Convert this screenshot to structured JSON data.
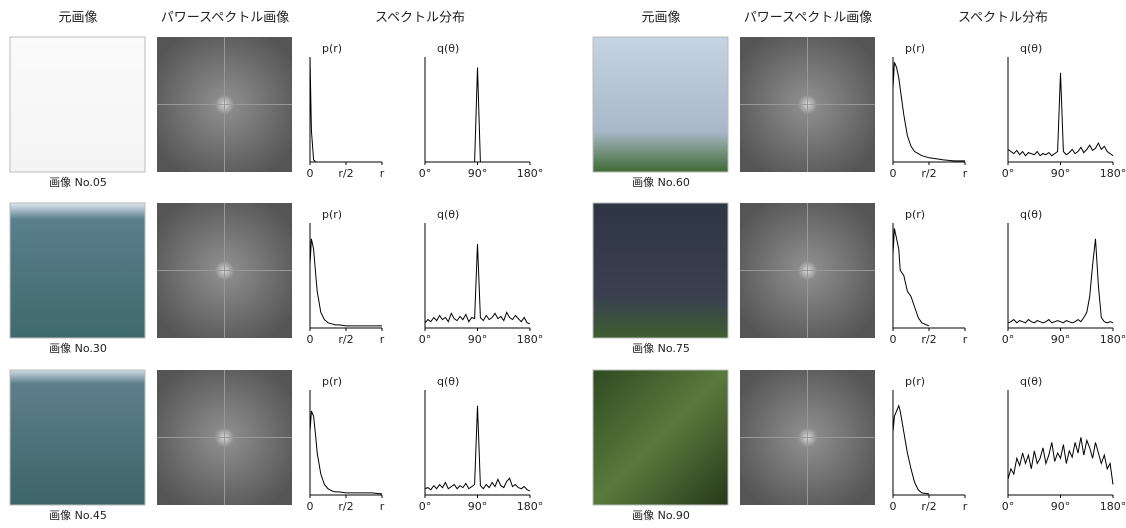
{
  "headers": [
    "元画像",
    "パワースペクトル画像",
    "スペクトル分布"
  ],
  "p_axis": {
    "label": "p(r)",
    "xlim": [
      0,
      1
    ],
    "ylim": [
      0,
      1
    ],
    "xticks": [
      0,
      {
        "value": 0.5,
        "label": "r/2"
      },
      {
        "value": 1,
        "label": "r"
      }
    ],
    "x": [
      0,
      0.02,
      0.05,
      0.08,
      0.1,
      0.15,
      0.2,
      0.25,
      0.3,
      0.35,
      0.4,
      0.5,
      0.6,
      0.7,
      0.85,
      1
    ]
  },
  "q_axis": {
    "label": "q(θ)",
    "xlim": [
      0,
      180
    ],
    "ylim": [
      0,
      1
    ],
    "xticks": [
      {
        "value": 0,
        "label": "0°"
      },
      {
        "value": 90,
        "label": "90°"
      },
      {
        "value": 180,
        "label": "180°"
      }
    ],
    "x": [
      0,
      5,
      10,
      15,
      20,
      25,
      30,
      35,
      40,
      45,
      50,
      55,
      60,
      65,
      70,
      75,
      80,
      85,
      90,
      95,
      100,
      105,
      110,
      115,
      120,
      125,
      130,
      135,
      140,
      145,
      150,
      155,
      160,
      165,
      170,
      175,
      180
    ]
  },
  "panels": [
    {
      "label": "画像 No.05",
      "p": [
        1,
        0.3,
        0.02,
        0,
        0,
        0,
        0,
        0,
        0,
        0,
        0,
        0,
        0,
        0,
        0,
        0
      ],
      "q": [
        0,
        0,
        0,
        0,
        0,
        0,
        0,
        0,
        0,
        0,
        0,
        0,
        0,
        0,
        0,
        0,
        0,
        0,
        0.9,
        0,
        0,
        0,
        0,
        0,
        0,
        0,
        0,
        0,
        0,
        0,
        0,
        0,
        0,
        0,
        0,
        0,
        0
      ]
    },
    {
      "label": "画像 No.30",
      "p": [
        0.6,
        0.85,
        0.75,
        0.5,
        0.35,
        0.15,
        0.08,
        0.05,
        0.04,
        0.03,
        0.03,
        0.02,
        0.02,
        0.02,
        0.02,
        0.02
      ],
      "q": [
        0.05,
        0.08,
        0.06,
        0.1,
        0.07,
        0.12,
        0.08,
        0.1,
        0.06,
        0.14,
        0.09,
        0.07,
        0.11,
        0.08,
        0.13,
        0.06,
        0.1,
        0.09,
        0.8,
        0.1,
        0.07,
        0.12,
        0.08,
        0.1,
        0.14,
        0.09,
        0.11,
        0.07,
        0.15,
        0.1,
        0.08,
        0.12,
        0.09,
        0.06,
        0.1,
        0.05,
        0.04
      ]
    },
    {
      "label": "画像 No.45",
      "p": [
        0.6,
        0.8,
        0.75,
        0.55,
        0.4,
        0.2,
        0.1,
        0.06,
        0.04,
        0.03,
        0.03,
        0.02,
        0.02,
        0.02,
        0.02,
        0.01
      ],
      "q": [
        0.06,
        0.07,
        0.05,
        0.09,
        0.06,
        0.1,
        0.07,
        0.12,
        0.06,
        0.08,
        0.1,
        0.06,
        0.09,
        0.07,
        0.11,
        0.06,
        0.08,
        0.1,
        0.85,
        0.09,
        0.06,
        0.1,
        0.07,
        0.12,
        0.08,
        0.15,
        0.09,
        0.07,
        0.13,
        0.16,
        0.08,
        0.1,
        0.07,
        0.06,
        0.08,
        0.05,
        0.04
      ]
    },
    {
      "label": "画像 No.60",
      "p": [
        0.7,
        0.95,
        0.9,
        0.8,
        0.7,
        0.45,
        0.25,
        0.15,
        0.1,
        0.08,
        0.06,
        0.04,
        0.03,
        0.02,
        0.01,
        0.01
      ],
      "q": [
        0.12,
        0.1,
        0.08,
        0.11,
        0.07,
        0.1,
        0.06,
        0.09,
        0.08,
        0.07,
        0.1,
        0.06,
        0.08,
        0.07,
        0.09,
        0.06,
        0.08,
        0.1,
        0.85,
        0.1,
        0.07,
        0.09,
        0.12,
        0.08,
        0.1,
        0.14,
        0.09,
        0.12,
        0.16,
        0.11,
        0.13,
        0.18,
        0.12,
        0.15,
        0.1,
        0.08,
        0.06
      ]
    },
    {
      "label": "画像 No.75",
      "p": [
        0.7,
        0.95,
        0.85,
        0.75,
        0.55,
        0.5,
        0.35,
        0.3,
        0.2,
        0.1,
        0.05,
        0.02,
        null,
        null,
        null,
        null
      ],
      "q": [
        0.05,
        0.06,
        0.08,
        0.05,
        0.07,
        0.06,
        0.05,
        0.08,
        0.06,
        0.05,
        0.07,
        0.06,
        0.05,
        0.06,
        0.08,
        0.05,
        0.06,
        0.07,
        0.06,
        0.05,
        0.07,
        0.06,
        0.05,
        0.06,
        0.08,
        0.06,
        0.1,
        0.15,
        0.3,
        0.6,
        0.85,
        0.4,
        0.1,
        0.06,
        0.05,
        0.06,
        0.05
      ]
    },
    {
      "label": "画像 No.90",
      "p": [
        0.6,
        0.75,
        0.8,
        0.85,
        0.8,
        0.6,
        0.4,
        0.25,
        0.12,
        0.05,
        0.02,
        0.01,
        null,
        null,
        null,
        null
      ],
      "q": [
        0.15,
        0.25,
        0.2,
        0.35,
        0.28,
        0.4,
        0.3,
        0.38,
        0.25,
        0.42,
        0.3,
        0.35,
        0.45,
        0.3,
        0.38,
        0.5,
        0.32,
        0.4,
        0.35,
        0.48,
        0.3,
        0.42,
        0.36,
        0.5,
        0.4,
        0.55,
        0.38,
        0.52,
        0.45,
        0.35,
        0.5,
        0.4,
        0.3,
        0.38,
        0.25,
        0.3,
        0.1
      ]
    }
  ]
}
